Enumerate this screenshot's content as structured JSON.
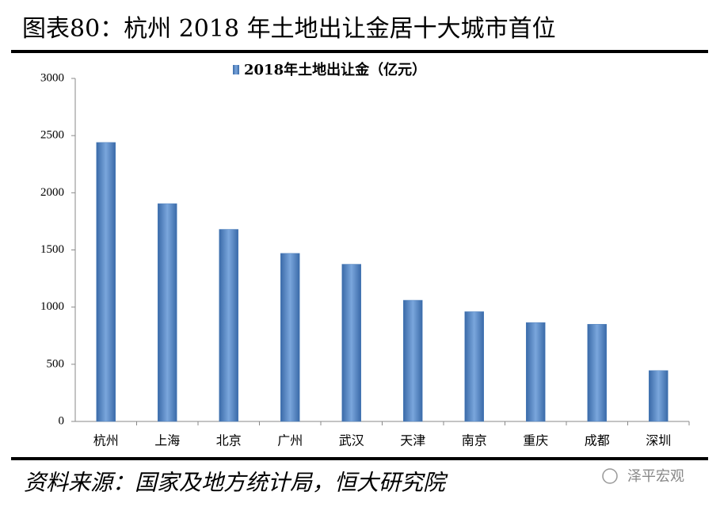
{
  "chart_data": {
    "type": "bar",
    "title": "图表80：杭州 2018 年土地出让金居十大城市首位",
    "source": "资料来源：国家及地方统计局，恒大研究院",
    "watermark": "泽平宏观",
    "categories": [
      "杭州",
      "上海",
      "北京",
      "广州",
      "武汉",
      "天津",
      "南京",
      "重庆",
      "成都",
      "深圳"
    ],
    "series": [
      {
        "name": "2018年土地出让金（亿元）",
        "color": "#4f81bd",
        "values": [
          2440,
          1905,
          1680,
          1470,
          1375,
          1060,
          960,
          865,
          850,
          445
        ]
      }
    ],
    "ylim": [
      0,
      3000
    ],
    "yticks": [
      0,
      500,
      1000,
      1500,
      2000,
      2500,
      3000
    ]
  }
}
